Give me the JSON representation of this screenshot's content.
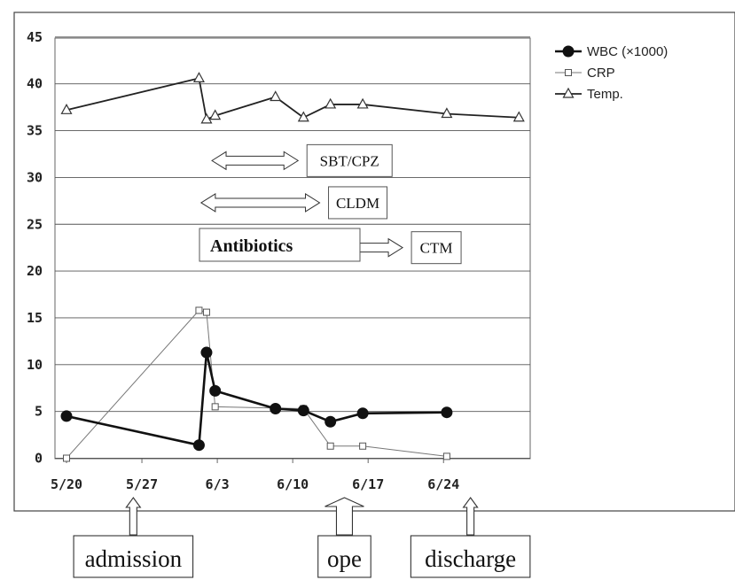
{
  "chart_data": {
    "type": "line",
    "x_tick_labels": [
      "5/20",
      "5/27",
      "6/3",
      "6/10",
      "6/17",
      "6/24"
    ],
    "x_ticks_days": [
      0,
      7,
      14,
      21,
      28,
      35
    ],
    "ylim": [
      0,
      45
    ],
    "y_ticks": [
      0,
      5,
      10,
      15,
      20,
      25,
      30,
      35,
      40,
      45
    ],
    "grid": "horizontal",
    "legend_position": "top-right",
    "series": [
      {
        "name": "WBC (×1000)",
        "marker": "filled-circle",
        "points": [
          {
            "day": 0,
            "value": 4.5
          },
          {
            "day": 12.3,
            "value": 1.4
          },
          {
            "day": 13,
            "value": 11.3
          },
          {
            "day": 13.8,
            "value": 7.2
          },
          {
            "day": 19.4,
            "value": 5.3
          },
          {
            "day": 22,
            "value": 5.1
          },
          {
            "day": 24.5,
            "value": 3.9
          },
          {
            "day": 27.5,
            "value": 4.8
          },
          {
            "day": 35.3,
            "value": 4.9
          }
        ]
      },
      {
        "name": "CRP",
        "marker": "open-square",
        "points": [
          {
            "day": 0,
            "value": 0
          },
          {
            "day": 12.3,
            "value": 15.8
          },
          {
            "day": 13,
            "value": 15.6
          },
          {
            "day": 13.8,
            "value": 5.5
          },
          {
            "day": 22,
            "value": 5.3
          },
          {
            "day": 24.5,
            "value": 1.3
          },
          {
            "day": 27.5,
            "value": 1.3
          },
          {
            "day": 35.3,
            "value": 0.2
          }
        ]
      },
      {
        "name": "Temp.",
        "marker": "open-triangle",
        "points": [
          {
            "day": 0,
            "value": 37.2
          },
          {
            "day": 12.3,
            "value": 40.6
          },
          {
            "day": 13,
            "value": 36.2
          },
          {
            "day": 13.8,
            "value": 36.6
          },
          {
            "day": 19.4,
            "value": 38.6
          },
          {
            "day": 22,
            "value": 36.4
          },
          {
            "day": 24.5,
            "value": 37.8
          },
          {
            "day": 27.5,
            "value": 37.8
          },
          {
            "day": 35.3,
            "value": 36.8
          },
          {
            "day": 42,
            "value": 36.4
          }
        ]
      }
    ],
    "annotations": {
      "antibiotics_label": "Antibiotics",
      "regimens": [
        {
          "label": "SBT/CPZ",
          "y_value": 31.8,
          "start_day": 13.5,
          "end_day": 21.5
        },
        {
          "label": "CLDM",
          "y_value": 27.3,
          "start_day": 12.5,
          "end_day": 23.5
        },
        {
          "label": "CTM",
          "y_value": 22.5,
          "start_day": 25.2,
          "end_day": 31.2
        }
      ],
      "events": [
        {
          "label": "admission",
          "day": 6.2
        },
        {
          "label": "ope",
          "day": 25.8
        },
        {
          "label": "discharge",
          "day": 37.5
        }
      ]
    }
  }
}
